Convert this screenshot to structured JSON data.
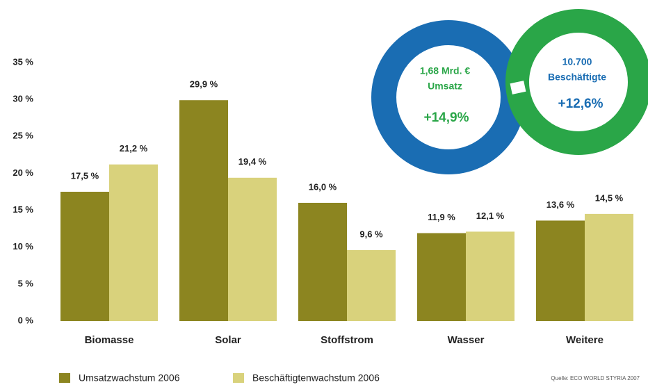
{
  "chart_data": {
    "type": "bar",
    "categories": [
      "Biomasse",
      "Solar",
      "Stoffstrom",
      "Wasser",
      "Weitere"
    ],
    "series": [
      {
        "name": "Umsatzwachstum 2006",
        "color": "#8c8520",
        "values": [
          17.5,
          29.9,
          16.0,
          11.9,
          13.6
        ],
        "value_labels": [
          "17,5 %",
          "29,9 %",
          "16,0 %",
          "11,9 %",
          "13,6 %"
        ]
      },
      {
        "name": "Beschäftigtenwachstum 2006",
        "color": "#d9d27c",
        "values": [
          21.2,
          19.4,
          9.6,
          12.1,
          14.5
        ],
        "value_labels": [
          "21,2 %",
          "19,4 %",
          "9,6 %",
          "12,1 %",
          "14,5 %"
        ]
      }
    ],
    "ylim": [
      0,
      35
    ],
    "yticks": [
      {
        "value": 0,
        "label": "0 %"
      },
      {
        "value": 5,
        "label": "5 %"
      },
      {
        "value": 10,
        "label": "10 %"
      },
      {
        "value": 15,
        "label": "15 %"
      },
      {
        "value": 20,
        "label": "20 %"
      },
      {
        "value": 25,
        "label": "25 %"
      },
      {
        "value": 30,
        "label": "30 %"
      },
      {
        "value": 35,
        "label": "35 %"
      }
    ],
    "grid": false,
    "annotations": {
      "revenue": [
        "1,68 Mrd. €",
        "Umsatz",
        "+14,9%"
      ],
      "employment": [
        "10.700",
        "Beschäftigte",
        "+12,6%"
      ]
    },
    "source": "Quelle: ECO WORLD STYRIA 2007"
  }
}
